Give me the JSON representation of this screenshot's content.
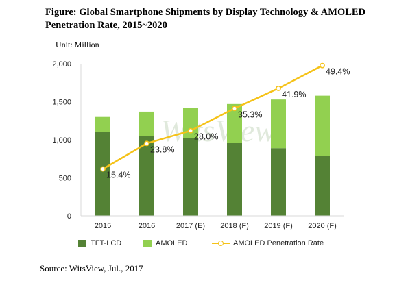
{
  "title": "Figure: Global Smartphone Shipments by Display Technology & AMOLED Penetration Rate, 2015~2020",
  "unit_label": "Unit: Million",
  "source": "Source: WitsView, Jul., 2017",
  "watermark": "WitsView",
  "colors": {
    "tft_lcd": "#548235",
    "amoled": "#92d050",
    "rate_line": "#f5c218",
    "grid": "#d9d9d9"
  },
  "chart_data": {
    "type": "bar",
    "stacked": true,
    "categories": [
      "2015",
      "2016",
      "2017 (E)",
      "2018 (F)",
      "2019 (F)",
      "2020 (F)"
    ],
    "series": [
      {
        "name": "TFT-LCD",
        "values": [
          1100,
          1050,
          1020,
          960,
          890,
          790
        ]
      },
      {
        "name": "AMOLED",
        "values": [
          200,
          320,
          395,
          510,
          640,
          790
        ]
      }
    ],
    "line_series": {
      "name": "AMOLED Penetration Rate",
      "values": [
        15.4,
        23.8,
        28.0,
        35.3,
        41.9,
        49.4
      ],
      "labels": [
        "15.4%",
        "23.8%",
        "28.0%",
        "35.3%",
        "41.9%",
        "49.4%"
      ]
    },
    "y_ticks": [
      "0",
      "500",
      "1,000",
      "1,500",
      "2,000"
    ],
    "ylim": [
      0,
      2000
    ],
    "y2lim": [
      0,
      50
    ],
    "grid": false,
    "legend_position": "bottom"
  }
}
